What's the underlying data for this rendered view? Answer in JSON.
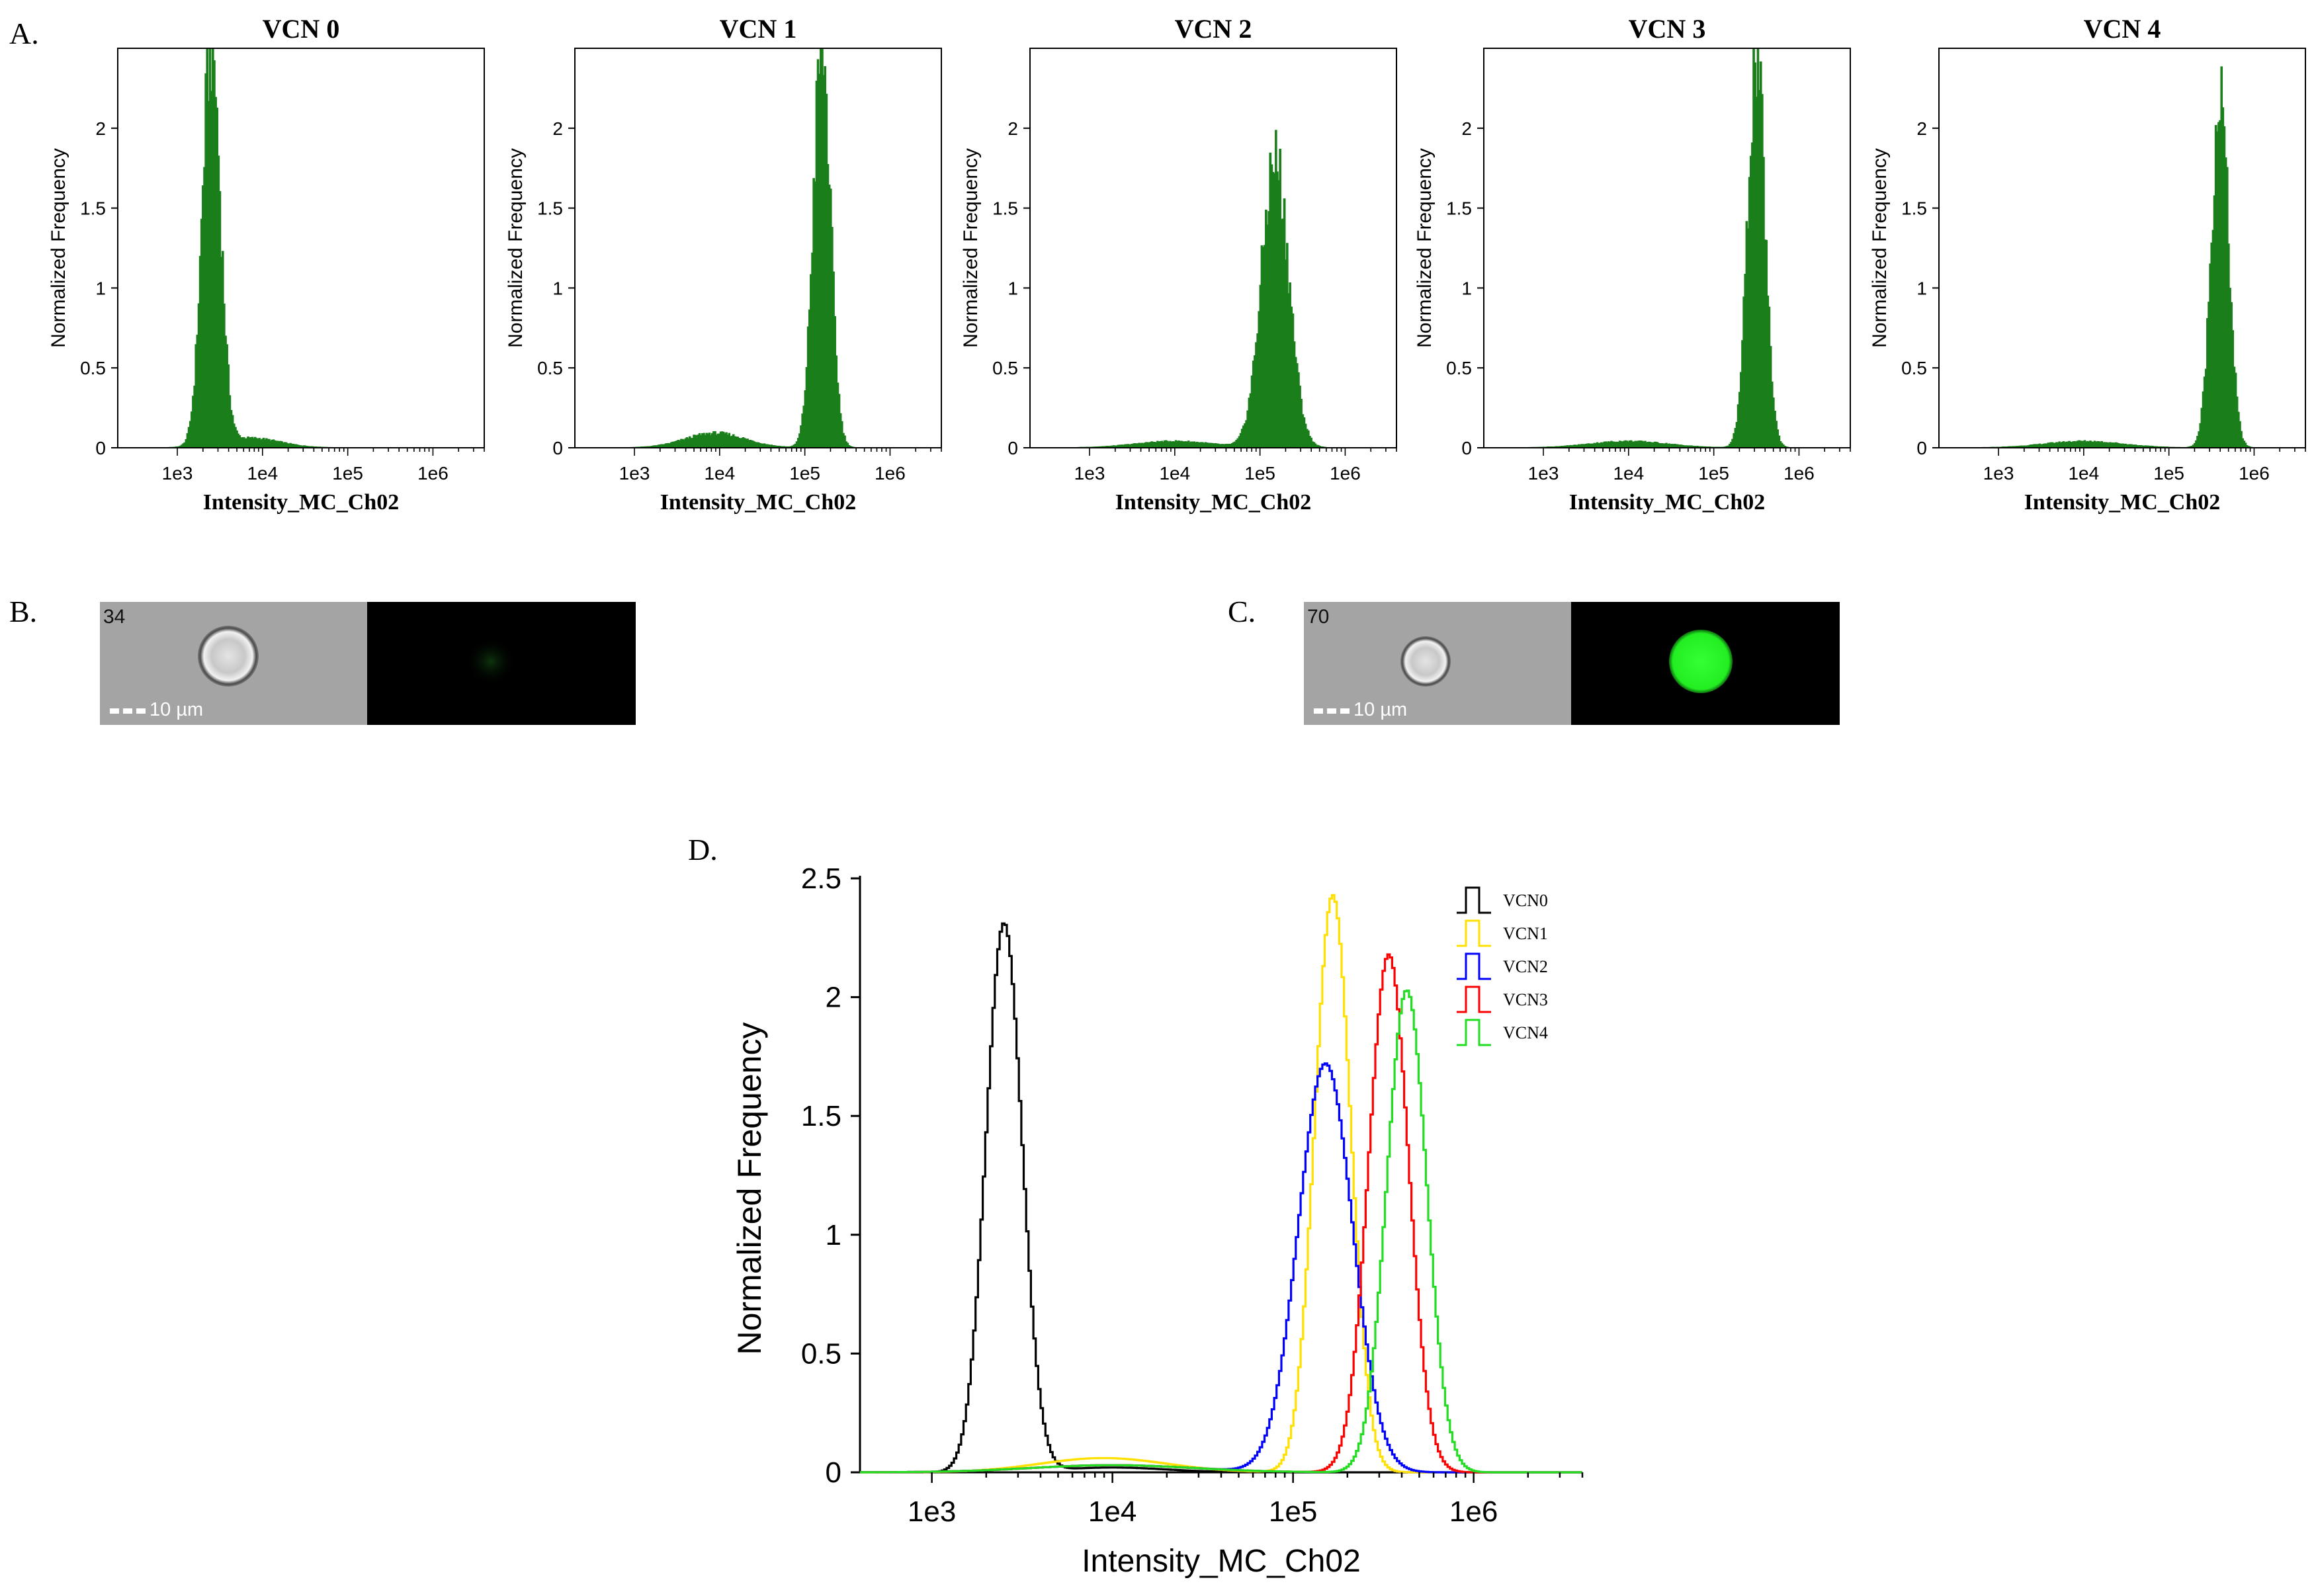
{
  "panel_labels": {
    "a": "A.",
    "b": "B.",
    "c": "C.",
    "d": "D."
  },
  "colors": {
    "histogram_fill": "#1a7f1a",
    "black": "#000000",
    "yellow": "#ffe000",
    "blue": "#0000ff",
    "red": "#ff0000",
    "green": "#22dd22"
  },
  "chart_data": [
    {
      "type": "area",
      "title": "VCN 0",
      "xlabel": "Intensity_MC_Ch02",
      "ylabel": "Normalized Frequency",
      "xscale": "log10",
      "xlim": [
        200,
        4000000
      ],
      "ylim": [
        0,
        2.5
      ],
      "xticks": [
        "1e3",
        "1e4",
        "1e5",
        "1e6"
      ],
      "yticks": [
        "0",
        "0.5",
        "1",
        "1.5",
        "2"
      ],
      "components": [
        {
          "center_log10": 3.4,
          "sigma_log10": 0.105,
          "height": 2.5
        },
        {
          "center_log10": 3.85,
          "sigma_log10": 0.35,
          "height": 0.06
        }
      ]
    },
    {
      "type": "area",
      "title": "VCN 1",
      "xlabel": "Intensity_MC_Ch02",
      "ylabel": "Normalized Frequency",
      "xscale": "log10",
      "xlim": [
        200,
        4000000
      ],
      "ylim": [
        0,
        2.5
      ],
      "xticks": [
        "1e3",
        "1e4",
        "1e5",
        "1e6"
      ],
      "yticks": [
        "0",
        "0.5",
        "1",
        "1.5",
        "2"
      ],
      "components": [
        {
          "center_log10": 5.2,
          "sigma_log10": 0.1,
          "height": 2.5
        },
        {
          "center_log10": 3.95,
          "sigma_log10": 0.35,
          "height": 0.09
        }
      ]
    },
    {
      "type": "area",
      "title": "VCN 2",
      "xlabel": "Intensity_MC_Ch02",
      "ylabel": "Normalized Frequency",
      "xscale": "log10",
      "xlim": [
        200,
        4000000
      ],
      "ylim": [
        0,
        2.5
      ],
      "xticks": [
        "1e3",
        "1e4",
        "1e5",
        "1e6"
      ],
      "yticks": [
        "0",
        "0.5",
        "1",
        "1.5",
        "2"
      ],
      "components": [
        {
          "center_log10": 5.18,
          "sigma_log10": 0.16,
          "height": 1.8
        },
        {
          "center_log10": 4.0,
          "sigma_log10": 0.45,
          "height": 0.04
        }
      ]
    },
    {
      "type": "area",
      "title": "VCN 3",
      "xlabel": "Intensity_MC_Ch02",
      "ylabel": "Normalized Frequency",
      "xscale": "log10",
      "xlim": [
        200,
        4000000
      ],
      "ylim": [
        0,
        2.5
      ],
      "xticks": [
        "1e3",
        "1e4",
        "1e5",
        "1e6"
      ],
      "yticks": [
        "0",
        "0.5",
        "1",
        "1.5",
        "2"
      ],
      "components": [
        {
          "center_log10": 5.5,
          "sigma_log10": 0.1,
          "height": 2.45
        },
        {
          "center_log10": 4.0,
          "sigma_log10": 0.45,
          "height": 0.04
        }
      ]
    },
    {
      "type": "area",
      "title": "VCN 4",
      "xlabel": "Intensity_MC_Ch02",
      "ylabel": "Normalized Frequency",
      "xscale": "log10",
      "xlim": [
        200,
        4000000
      ],
      "ylim": [
        0,
        2.5
      ],
      "xticks": [
        "1e3",
        "1e4",
        "1e5",
        "1e6"
      ],
      "yticks": [
        "0",
        "0.5",
        "1",
        "1.5",
        "2"
      ],
      "components": [
        {
          "center_log10": 5.6,
          "sigma_log10": 0.1,
          "height": 2.2
        },
        {
          "center_log10": 4.0,
          "sigma_log10": 0.45,
          "height": 0.04
        }
      ]
    },
    {
      "type": "line",
      "title": "",
      "xlabel": "Intensity_MC_Ch02",
      "ylabel": "Normalized Frequency",
      "xscale": "log10",
      "xlim": [
        400,
        4000000
      ],
      "ylim": [
        0,
        2.5
      ],
      "xticks": [
        "1e3",
        "1e4",
        "1e5",
        "1e6"
      ],
      "yticks": [
        "0",
        "0.5",
        "1",
        "1.5",
        "2",
        "2.5"
      ],
      "legend": "top-right",
      "series": [
        {
          "name": "VCN0",
          "color": "#000000",
          "components": [
            {
              "center_log10": 3.4,
              "sigma_log10": 0.1,
              "height": 2.31
            },
            {
              "center_log10": 4.0,
              "sigma_log10": 0.3,
              "height": 0.02
            }
          ]
        },
        {
          "name": "VCN1",
          "color": "#ffe000",
          "components": [
            {
              "center_log10": 5.22,
              "sigma_log10": 0.1,
              "height": 2.43
            },
            {
              "center_log10": 3.95,
              "sigma_log10": 0.35,
              "height": 0.06
            }
          ]
        },
        {
          "name": "VCN2",
          "color": "#0000ff",
          "components": [
            {
              "center_log10": 5.18,
              "sigma_log10": 0.15,
              "height": 1.72
            },
            {
              "center_log10": 4.0,
              "sigma_log10": 0.45,
              "height": 0.03
            }
          ]
        },
        {
          "name": "VCN3",
          "color": "#ff0000",
          "components": [
            {
              "center_log10": 5.53,
              "sigma_log10": 0.11,
              "height": 2.18
            },
            {
              "center_log10": 4.0,
              "sigma_log10": 0.45,
              "height": 0.03
            }
          ]
        },
        {
          "name": "VCN4",
          "color": "#22dd22",
          "components": [
            {
              "center_log10": 5.63,
              "sigma_log10": 0.11,
              "height": 2.03
            },
            {
              "center_log10": 4.0,
              "sigma_log10": 0.45,
              "height": 0.03
            }
          ]
        }
      ]
    }
  ],
  "micrographs": [
    {
      "id": "B",
      "object_number": "34",
      "scale_label": "10 µm",
      "fluorescence_intensity": 0.08
    },
    {
      "id": "C",
      "object_number": "70",
      "scale_label": "10 µm",
      "fluorescence_intensity": 1.0
    }
  ]
}
